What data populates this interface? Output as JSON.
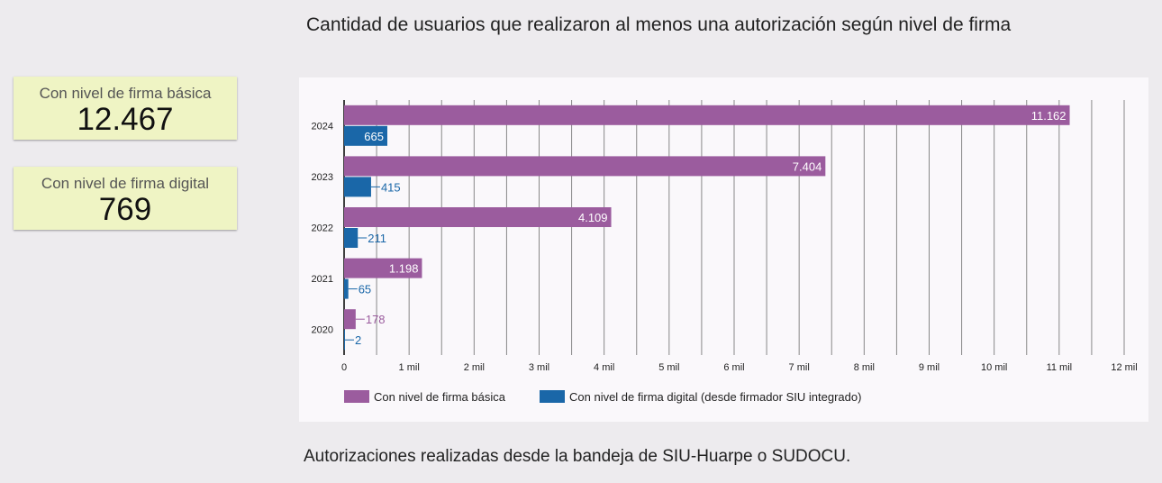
{
  "kpis": [
    {
      "label": "Con nivel de firma básica",
      "value": "12.467"
    },
    {
      "label": "Con nivel de firma digital",
      "value": "769"
    }
  ],
  "footnote": "Autorizaciones realizadas desde la bandeja de SIU-Huarpe o SUDOCU.",
  "colors": {
    "basica": "#9b5c9e",
    "digital": "#1a67a8",
    "grid": "#888888"
  },
  "chart_data": {
    "type": "bar",
    "orientation": "horizontal",
    "title": "Cantidad de usuarios que realizaron al menos una autorización según nivel de firma",
    "categories": [
      "2024",
      "2023",
      "2022",
      "2021",
      "2020"
    ],
    "series": [
      {
        "name": "Con nivel de firma básica",
        "values": [
          11162,
          7404,
          4109,
          1198,
          178
        ],
        "labels": [
          "11.162",
          "7.404",
          "4.109",
          "1.198",
          "178"
        ]
      },
      {
        "name": "Con nivel de firma digital (desde firmador SIU integrado)",
        "values": [
          665,
          415,
          211,
          65,
          2
        ],
        "labels": [
          "665",
          "415",
          "211",
          "65",
          "2"
        ]
      }
    ],
    "xlim": [
      0,
      12000
    ],
    "xticks": [
      0,
      1000,
      2000,
      3000,
      4000,
      5000,
      6000,
      7000,
      8000,
      9000,
      10000,
      11000,
      12000
    ],
    "xtick_labels": [
      "0",
      "1 mil",
      "2 mil",
      "3 mil",
      "4 mil",
      "5 mil",
      "6 mil",
      "7 mil",
      "8 mil",
      "9 mil",
      "10 mil",
      "11 mil",
      "12 mil"
    ],
    "minor_grid_step": 500,
    "grid": true,
    "legend": "bottom-left",
    "xlabel": "",
    "ylabel": ""
  }
}
